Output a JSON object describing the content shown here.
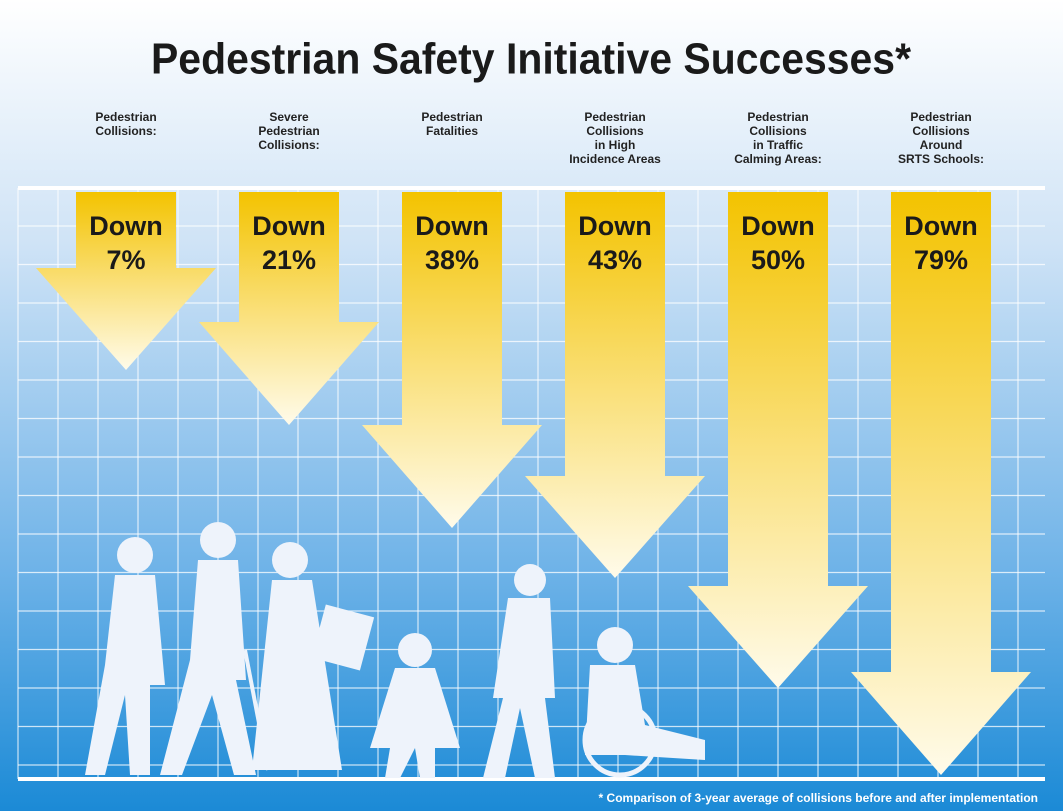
{
  "title": "Pedestrian Safety Initiative Successes*",
  "columns": [
    {
      "label": [
        "Pedestrian",
        "Collisions:"
      ],
      "text": "Down",
      "value": "7%"
    },
    {
      "label": [
        "Severe",
        "Pedestrian",
        "Collisions:"
      ],
      "text": "Down",
      "value": "21%"
    },
    {
      "label": [
        "Pedestrian",
        "Fatalities"
      ],
      "text": "Down",
      "value": "38%"
    },
    {
      "label": [
        "Pedestrian",
        "Collisions",
        "in High",
        "Incidence Areas"
      ],
      "text": "Down",
      "value": "43%"
    },
    {
      "label": [
        "Pedestrian",
        "Collisions",
        "in Traffic",
        "Calming Areas:"
      ],
      "text": "Down",
      "value": "50%"
    },
    {
      "label": [
        "Pedestrian",
        "Collisions",
        "Around",
        "SRTS Schools:"
      ],
      "text": "Down",
      "value": "79%"
    }
  ],
  "footnote": "* Comparison of 3-year average of collisions before and after implementation"
}
